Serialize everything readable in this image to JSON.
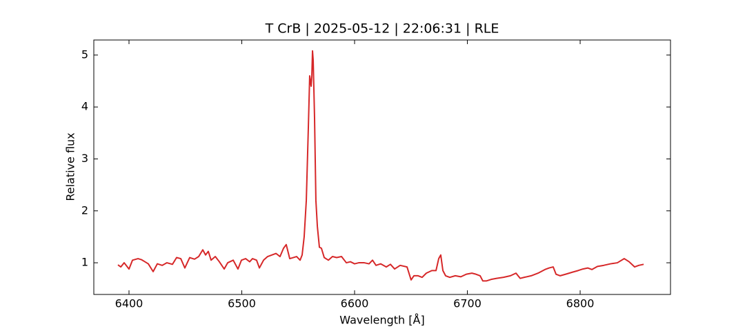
{
  "chart_data": {
    "type": "line",
    "title": "T CrB | 2025-05-12 | 22:06:31 | RLE",
    "xlabel": "Wavelength [Å]",
    "ylabel": "Relative flux",
    "color": "#d62728",
    "xlim": [
      6368.8,
      6880.1
    ],
    "ylim": [
      0.39,
      5.29
    ],
    "xticks": [
      6400,
      6500,
      6600,
      6700,
      6800
    ],
    "yticks": [
      1,
      2,
      3,
      4,
      5
    ],
    "grid": false,
    "x": [
      6390.2,
      6392.7,
      6395.7,
      6400.0,
      6403.1,
      6408.0,
      6411.0,
      6414.1,
      6417.1,
      6421.4,
      6425.1,
      6429.4,
      6433.6,
      6438.5,
      6442.2,
      6445.9,
      6449.5,
      6453.8,
      6458.1,
      6461.8,
      6465.4,
      6467.9,
      6470.3,
      6472.8,
      6476.5,
      6480.1,
      6484.4,
      6487.5,
      6492.4,
      6496.6,
      6499.7,
      6503.4,
      6507.0,
      6509.5,
      6513.1,
      6515.6,
      6519.3,
      6522.9,
      6526.6,
      6530.3,
      6533.9,
      6537.0,
      6539.4,
      6542.5,
      6545.6,
      6548.6,
      6551.7,
      6553.5,
      6555.3,
      6557.2,
      6559.0,
      6560.2,
      6561.5,
      6562.1,
      6562.7,
      6563.3,
      6564.5,
      6565.7,
      6567.0,
      6568.8,
      6570.6,
      6573.1,
      6576.8,
      6580.4,
      6584.1,
      6588.4,
      6592.7,
      6596.3,
      6600.0,
      6603.7,
      6608.6,
      6612.8,
      6615.9,
      6619.0,
      6623.2,
      6628.1,
      6631.8,
      6635.5,
      6640.4,
      6646.5,
      6650.1,
      6652.6,
      6656.3,
      6659.9,
      6663.6,
      6668.5,
      6672.2,
      6674.6,
      6676.4,
      6678.3,
      6680.7,
      6684.4,
      6689.3,
      6694.2,
      6699.1,
      6704.0,
      6707.6,
      6711.3,
      6713.7,
      6716.8,
      6721.1,
      6726.0,
      6732.1,
      6738.2,
      6743.1,
      6746.8,
      6750.5,
      6756.6,
      6762.7,
      6768.8,
      6772.5,
      6776.1,
      6778.6,
      6782.3,
      6787.2,
      6793.3,
      6798.2,
      6802.4,
      6806.7,
      6810.4,
      6815.3,
      6820.8,
      6826.9,
      6833.0,
      6839.1,
      6843.4,
      6848.3,
      6852.0,
      6856.3
    ],
    "values": [
      0.96,
      0.92,
      1.0,
      0.88,
      1.05,
      1.08,
      1.06,
      1.02,
      0.98,
      0.83,
      0.98,
      0.95,
      1.0,
      0.97,
      1.1,
      1.08,
      0.9,
      1.1,
      1.07,
      1.12,
      1.25,
      1.15,
      1.22,
      1.05,
      1.12,
      1.02,
      0.88,
      1.0,
      1.05,
      0.88,
      1.05,
      1.08,
      1.02,
      1.08,
      1.05,
      0.9,
      1.05,
      1.12,
      1.15,
      1.18,
      1.12,
      1.28,
      1.35,
      1.08,
      1.1,
      1.12,
      1.05,
      1.15,
      1.5,
      2.2,
      3.6,
      4.6,
      4.4,
      4.6,
      5.08,
      4.9,
      3.8,
      2.2,
      1.7,
      1.3,
      1.28,
      1.1,
      1.05,
      1.12,
      1.1,
      1.12,
      1.0,
      1.02,
      0.98,
      1.0,
      1.0,
      0.98,
      1.05,
      0.95,
      0.98,
      0.92,
      0.97,
      0.88,
      0.95,
      0.92,
      0.67,
      0.75,
      0.75,
      0.72,
      0.8,
      0.85,
      0.85,
      1.08,
      1.15,
      0.85,
      0.75,
      0.72,
      0.75,
      0.73,
      0.78,
      0.8,
      0.78,
      0.75,
      0.65,
      0.65,
      0.68,
      0.7,
      0.72,
      0.75,
      0.8,
      0.7,
      0.72,
      0.75,
      0.8,
      0.87,
      0.9,
      0.92,
      0.78,
      0.75,
      0.78,
      0.82,
      0.85,
      0.88,
      0.9,
      0.87,
      0.93,
      0.95,
      0.98,
      1.0,
      1.08,
      1.02,
      0.92,
      0.95,
      0.97
    ]
  }
}
